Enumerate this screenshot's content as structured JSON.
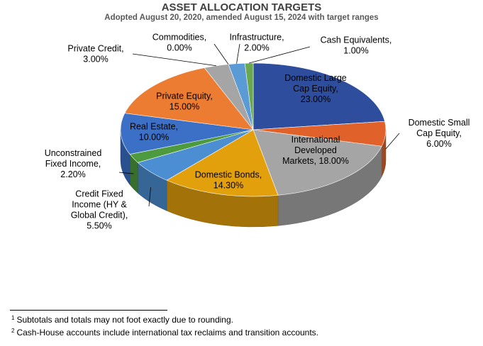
{
  "title": "ASSET ALLOCATION TARGETS",
  "subtitle": "Adopted August 20, 2020, amended August 15, 2024 with target ranges",
  "footnotes": [
    {
      "mark": "1",
      "text": "Subtotals and totals may not foot exactly due to rounding."
    },
    {
      "mark": "2",
      "text": "Cash-House accounts include international tax reclaims and transition accounts."
    }
  ],
  "chart_data": {
    "type": "pie",
    "style": "3d",
    "title": "ASSET ALLOCATION TARGETS",
    "subtitle": "Adopted August 20, 2020, amended August 15, 2024 with target ranges",
    "slices": [
      {
        "name": "Domestic Large Cap Equity",
        "value": 23.0,
        "label_lines": [
          "Domestic Large",
          "Cap Equity,",
          "23.00%"
        ],
        "color": "#2e4d9c"
      },
      {
        "name": "Domestic Small Cap Equity",
        "value": 6.0,
        "label_lines": [
          "Domestic Small",
          "Cap Equity,",
          "6.00%"
        ],
        "color": "#e0622a"
      },
      {
        "name": "International Developed Markets",
        "value": 18.0,
        "label_lines": [
          "International",
          "Developed",
          "Markets, 18.00%"
        ],
        "color": "#a5a5a5"
      },
      {
        "name": "Domestic Bonds",
        "value": 14.3,
        "label_lines": [
          "Domestic Bonds,",
          "14.30%"
        ],
        "color": "#e3a00d"
      },
      {
        "name": "Credit Fixed Income (HY & Global Credit)",
        "value": 5.5,
        "label_lines": [
          "Credit Fixed",
          "Income (HY &",
          "Global Credit),",
          "5.50%"
        ],
        "color": "#4b8ed1"
      },
      {
        "name": "Unconstrained Fixed Income",
        "value": 2.2,
        "label_lines": [
          "Unconstrained",
          "Fixed Income,",
          "2.20%"
        ],
        "color": "#4e9a3f"
      },
      {
        "name": "Real Estate",
        "value": 10.0,
        "label_lines": [
          "Real Estate,",
          "10.00%"
        ],
        "color": "#3c6fc6"
      },
      {
        "name": "Private Equity",
        "value": 15.0,
        "label_lines": [
          "Private Equity,",
          "15.00%"
        ],
        "color": "#ec7c31"
      },
      {
        "name": "Private Credit",
        "value": 3.0,
        "label_lines": [
          "Private Credit,",
          "3.00%"
        ],
        "color": "#a5a5a5"
      },
      {
        "name": "Commodities",
        "value": 0.0,
        "label_lines": [
          "Commodities,",
          "0.00%"
        ],
        "color": "#f2c14e"
      },
      {
        "name": "Infrastructure",
        "value": 2.0,
        "label_lines": [
          "Infrastructure,",
          "2.00%"
        ],
        "color": "#5b9bd5"
      },
      {
        "name": "Cash Equivalents",
        "value": 1.0,
        "label_lines": [
          "Cash Equivalents,",
          "1.00%"
        ],
        "color": "#6aa84f"
      }
    ]
  }
}
